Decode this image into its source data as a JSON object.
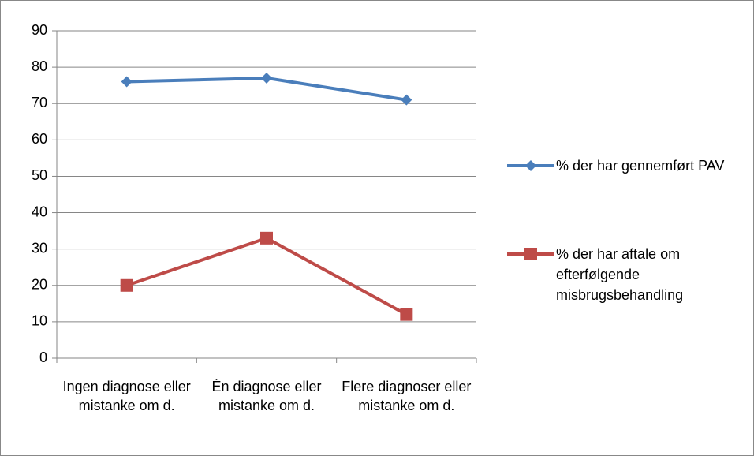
{
  "chart_data": {
    "type": "line",
    "categories": [
      "Ingen diagnose eller mistanke om d.",
      "Én diagnose eller mistanke om d.",
      "Flere diagnoser eller mistanke om d."
    ],
    "series": [
      {
        "name": "% der har gennemført PAV",
        "color": "#4a7ebb",
        "marker": "diamond",
        "values": [
          76,
          77,
          71
        ]
      },
      {
        "name": "% der har aftale om efterfølgende misbrugsbehandling",
        "color": "#be4b48",
        "marker": "square",
        "values": [
          20,
          33,
          12
        ]
      }
    ],
    "ylim": [
      0,
      90
    ],
    "yticks": [
      0,
      10,
      20,
      30,
      40,
      50,
      60,
      70,
      80,
      90
    ],
    "grid": true,
    "legend": "right"
  }
}
